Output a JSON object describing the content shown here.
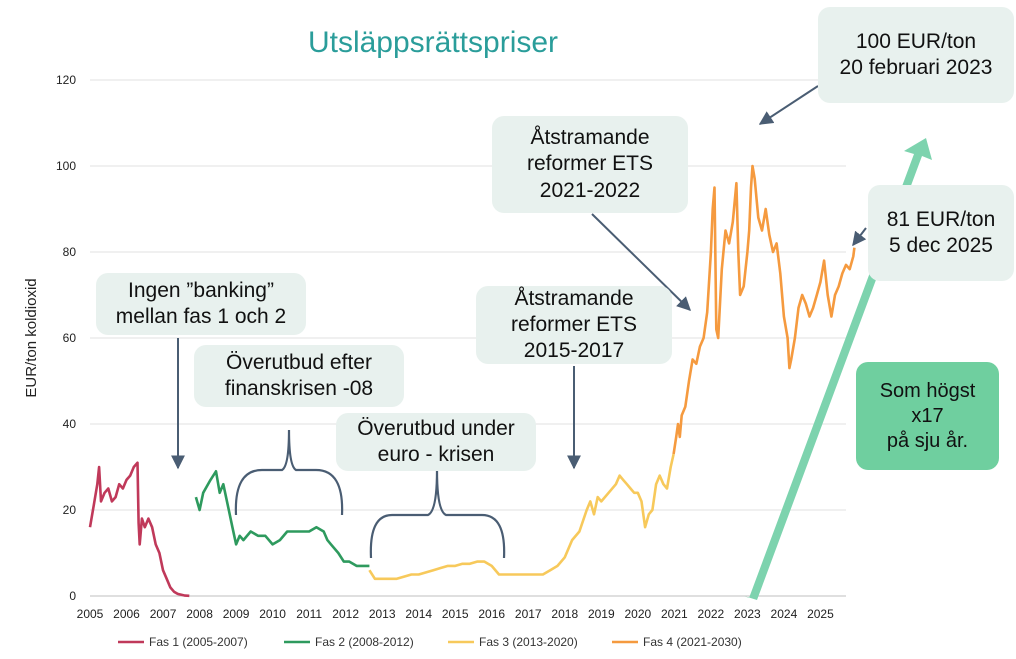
{
  "chart_data": {
    "type": "line",
    "title": "Utsläppsrättspriser",
    "ylabel": "EUR/ton koldioxid",
    "xlabel": "",
    "xlim": [
      2005,
      2025.7
    ],
    "ylim": [
      0,
      120
    ],
    "xticks": [
      "2005",
      "2006",
      "2007",
      "2008",
      "2009",
      "2010",
      "2011",
      "2012",
      "2013",
      "2014",
      "2015",
      "2016",
      "2017",
      "2018",
      "2019",
      "2020",
      "2021",
      "2022",
      "2023",
      "2024",
      "2025"
    ],
    "yticks": [
      "0",
      "20",
      "40",
      "60",
      "80",
      "100",
      "120"
    ],
    "grid": true,
    "legend_position": "bottom",
    "series": [
      {
        "name": "Fas 1 (2005-2007)",
        "color": "#c0395a",
        "points": [
          [
            2005.0,
            16
          ],
          [
            2005.1,
            21
          ],
          [
            2005.2,
            26
          ],
          [
            2005.25,
            30
          ],
          [
            2005.3,
            22
          ],
          [
            2005.4,
            24
          ],
          [
            2005.5,
            25
          ],
          [
            2005.6,
            22
          ],
          [
            2005.7,
            23
          ],
          [
            2005.8,
            26
          ],
          [
            2005.9,
            25
          ],
          [
            2006.0,
            27
          ],
          [
            2006.1,
            28
          ],
          [
            2006.2,
            30
          ],
          [
            2006.3,
            31
          ],
          [
            2006.33,
            17
          ],
          [
            2006.36,
            12
          ],
          [
            2006.42,
            18
          ],
          [
            2006.5,
            16
          ],
          [
            2006.6,
            18
          ],
          [
            2006.7,
            16
          ],
          [
            2006.8,
            12
          ],
          [
            2006.9,
            10
          ],
          [
            2007.0,
            6
          ],
          [
            2007.1,
            4
          ],
          [
            2007.2,
            2
          ],
          [
            2007.3,
            1
          ],
          [
            2007.4,
            0.5
          ],
          [
            2007.6,
            0.1
          ],
          [
            2007.72,
            0.05
          ]
        ]
      },
      {
        "name": "Fas 2 (2008-2012)",
        "color": "#2e9a5e",
        "points": [
          [
            2007.9,
            23
          ],
          [
            2008.0,
            20
          ],
          [
            2008.1,
            24
          ],
          [
            2008.3,
            27
          ],
          [
            2008.45,
            29
          ],
          [
            2008.55,
            24
          ],
          [
            2008.65,
            26
          ],
          [
            2008.8,
            20
          ],
          [
            2008.9,
            16
          ],
          [
            2009.0,
            12
          ],
          [
            2009.1,
            14
          ],
          [
            2009.2,
            13
          ],
          [
            2009.4,
            15
          ],
          [
            2009.6,
            14
          ],
          [
            2009.8,
            14
          ],
          [
            2010.0,
            12
          ],
          [
            2010.2,
            13
          ],
          [
            2010.4,
            15
          ],
          [
            2010.6,
            15
          ],
          [
            2010.8,
            15
          ],
          [
            2011.0,
            15
          ],
          [
            2011.2,
            16
          ],
          [
            2011.4,
            15
          ],
          [
            2011.5,
            13
          ],
          [
            2011.6,
            12
          ],
          [
            2011.8,
            10
          ],
          [
            2011.95,
            8
          ],
          [
            2012.1,
            8
          ],
          [
            2012.3,
            7
          ],
          [
            2012.5,
            7
          ],
          [
            2012.65,
            7
          ]
        ]
      },
      {
        "name": "Fas 3 (2013-2020)",
        "color": "#f7c95b",
        "points": [
          [
            2012.65,
            6
          ],
          [
            2012.8,
            4
          ],
          [
            2013.0,
            4
          ],
          [
            2013.2,
            4
          ],
          [
            2013.4,
            4
          ],
          [
            2013.6,
            4.5
          ],
          [
            2013.8,
            5
          ],
          [
            2014.0,
            5
          ],
          [
            2014.2,
            5.5
          ],
          [
            2014.4,
            6
          ],
          [
            2014.6,
            6.5
          ],
          [
            2014.8,
            7
          ],
          [
            2015.0,
            7
          ],
          [
            2015.2,
            7.5
          ],
          [
            2015.4,
            7.5
          ],
          [
            2015.6,
            8
          ],
          [
            2015.8,
            8
          ],
          [
            2016.0,
            7
          ],
          [
            2016.2,
            5
          ],
          [
            2016.4,
            5
          ],
          [
            2016.6,
            5
          ],
          [
            2016.8,
            5
          ],
          [
            2017.0,
            5
          ],
          [
            2017.2,
            5
          ],
          [
            2017.4,
            5
          ],
          [
            2017.6,
            6
          ],
          [
            2017.8,
            7
          ],
          [
            2018.0,
            9
          ],
          [
            2018.2,
            13
          ],
          [
            2018.4,
            15
          ],
          [
            2018.6,
            20
          ],
          [
            2018.7,
            22
          ],
          [
            2018.8,
            19
          ],
          [
            2018.9,
            23
          ],
          [
            2019.0,
            22
          ],
          [
            2019.2,
            24
          ],
          [
            2019.4,
            26
          ],
          [
            2019.5,
            28
          ],
          [
            2019.6,
            27
          ],
          [
            2019.7,
            26
          ],
          [
            2019.8,
            25
          ],
          [
            2019.9,
            24
          ],
          [
            2020.0,
            24
          ],
          [
            2020.1,
            22
          ],
          [
            2020.2,
            16
          ],
          [
            2020.3,
            19
          ],
          [
            2020.4,
            20
          ],
          [
            2020.5,
            26
          ],
          [
            2020.6,
            28
          ],
          [
            2020.7,
            26
          ],
          [
            2020.8,
            25
          ],
          [
            2020.9,
            30
          ],
          [
            2020.98,
            33
          ]
        ]
      },
      {
        "name": "Fas 4 (2021-2030)",
        "color": "#f59a3f",
        "points": [
          [
            2020.98,
            33
          ],
          [
            2021.05,
            37
          ],
          [
            2021.1,
            40
          ],
          [
            2021.15,
            37
          ],
          [
            2021.2,
            42
          ],
          [
            2021.3,
            44
          ],
          [
            2021.4,
            50
          ],
          [
            2021.5,
            55
          ],
          [
            2021.6,
            54
          ],
          [
            2021.7,
            58
          ],
          [
            2021.8,
            60
          ],
          [
            2021.9,
            66
          ],
          [
            2022.0,
            80
          ],
          [
            2022.05,
            90
          ],
          [
            2022.1,
            95
          ],
          [
            2022.15,
            62
          ],
          [
            2022.2,
            60
          ],
          [
            2022.3,
            76
          ],
          [
            2022.4,
            85
          ],
          [
            2022.5,
            82
          ],
          [
            2022.6,
            87
          ],
          [
            2022.7,
            96
          ],
          [
            2022.75,
            80
          ],
          [
            2022.8,
            70
          ],
          [
            2022.9,
            72
          ],
          [
            2023.0,
            80
          ],
          [
            2023.05,
            85
          ],
          [
            2023.1,
            95
          ],
          [
            2023.14,
            100
          ],
          [
            2023.2,
            97
          ],
          [
            2023.3,
            88
          ],
          [
            2023.4,
            85
          ],
          [
            2023.5,
            90
          ],
          [
            2023.6,
            84
          ],
          [
            2023.7,
            80
          ],
          [
            2023.8,
            82
          ],
          [
            2023.9,
            75
          ],
          [
            2024.0,
            65
          ],
          [
            2024.1,
            60
          ],
          [
            2024.15,
            53
          ],
          [
            2024.2,
            55
          ],
          [
            2024.3,
            60
          ],
          [
            2024.4,
            67
          ],
          [
            2024.5,
            70
          ],
          [
            2024.6,
            68
          ],
          [
            2024.7,
            65
          ],
          [
            2024.8,
            67
          ],
          [
            2024.9,
            70
          ],
          [
            2025.0,
            73
          ],
          [
            2025.1,
            78
          ],
          [
            2025.2,
            70
          ],
          [
            2025.3,
            65
          ],
          [
            2025.4,
            70
          ],
          [
            2025.5,
            72
          ],
          [
            2025.6,
            75
          ],
          [
            2025.7,
            77
          ],
          [
            2025.8,
            76
          ],
          [
            2025.9,
            79
          ],
          [
            2025.93,
            81
          ]
        ]
      }
    ]
  },
  "annotations": {
    "box_peak": [
      "100 EUR/ton",
      "20 februari 2023"
    ],
    "box_latest": [
      "81 EUR/ton",
      "5 dec 2025"
    ],
    "box_reform_2122": [
      "Åtstramande",
      "reformer ETS",
      "2021-2022"
    ],
    "box_reform_1517": [
      "Åtstramande",
      "reformer ETS",
      "2015-2017"
    ],
    "box_banking": [
      "Ingen ”banking”",
      "mellan fas 1 och 2"
    ],
    "box_finans": [
      "Överutbud efter",
      "finanskrisen -08"
    ],
    "box_euro": [
      "Överutbud under",
      "euro - krisen"
    ],
    "box_max": [
      "Som högst",
      "x17",
      "på sju år."
    ]
  },
  "colors": {
    "title": "#2a9d9a",
    "arrow": "#7dd3ae",
    "callout": "#4a5d73",
    "box_grey": "#e8f1ee",
    "box_green": "#6fcf9f"
  }
}
